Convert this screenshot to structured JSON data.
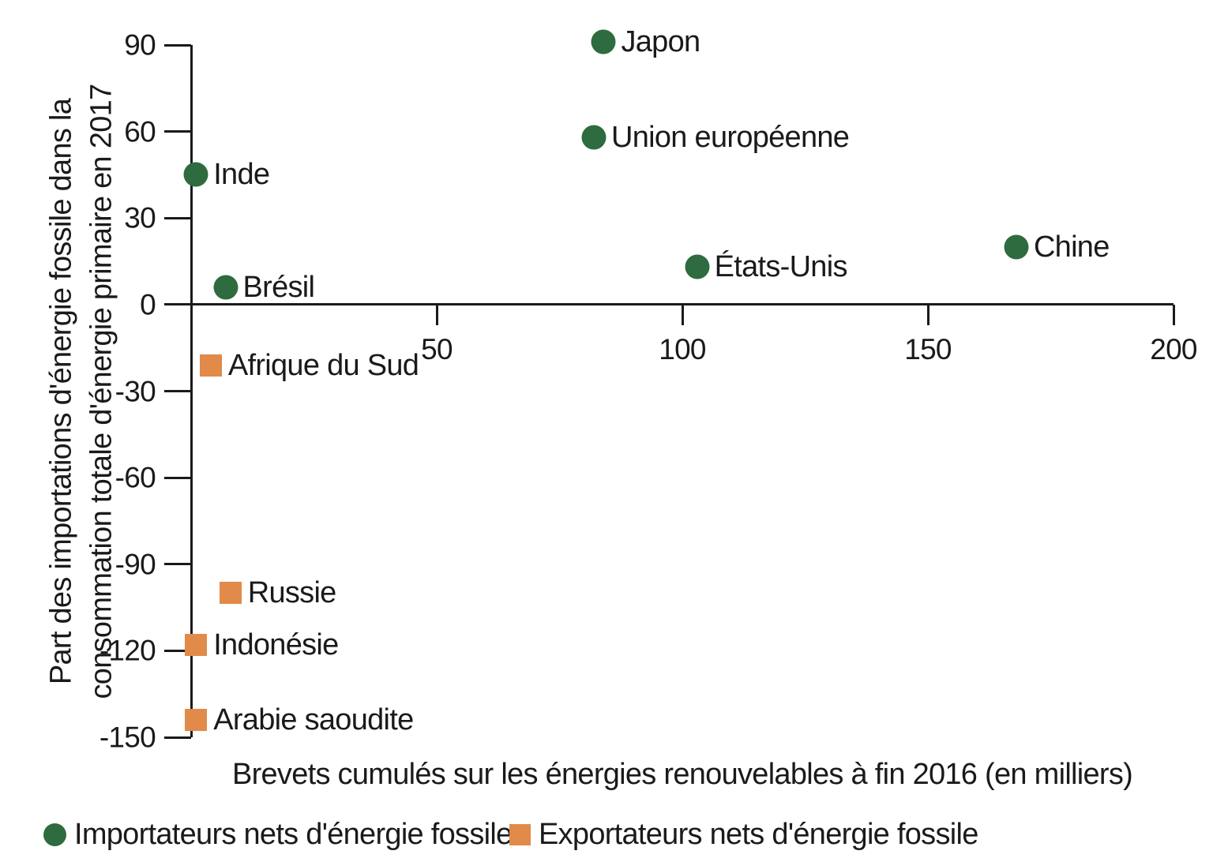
{
  "figure": {
    "background": "#ffffff",
    "text_color": "#1a1a1a",
    "axis_color": "#1a1a1a"
  },
  "chart_data": {
    "type": "scatter",
    "title": "",
    "xlabel": "Brevets cumulés sur les énergies renouvelables à fin 2016 (en milliers)",
    "ylabel": "Part des importations d'énergie fossile dans la consommation totale d'énergie primaire en 2017",
    "ylabel_lines": [
      "Part des importations d'énergie fossile dans la",
      "consommation totale d'énergie primaire en 2017"
    ],
    "xlim": [
      0,
      200
    ],
    "ylim": [
      -150,
      90
    ],
    "x_ticks": [
      50,
      100,
      150,
      200
    ],
    "y_ticks": [
      90,
      60,
      30,
      0,
      -30,
      -60,
      -90,
      -120,
      -150
    ],
    "grid": false,
    "legend_position": "bottom-left",
    "series": [
      {
        "name": "Importateurs nets d'énergie fossile",
        "marker": "circle",
        "color": "#2E6B3F",
        "points": [
          {
            "label": "Japon",
            "x": 84,
            "y": 91
          },
          {
            "label": "Union européenne",
            "x": 82,
            "y": 58
          },
          {
            "label": "Inde",
            "x": 1,
            "y": 45
          },
          {
            "label": "Chine",
            "x": 168,
            "y": 20
          },
          {
            "label": "États-Unis",
            "x": 103,
            "y": 13
          },
          {
            "label": "Brésil",
            "x": 7,
            "y": 6
          }
        ]
      },
      {
        "name": "Exportateurs nets d'énergie fossile",
        "marker": "square",
        "color": "#E18A4A",
        "points": [
          {
            "label": "Afrique du Sud",
            "x": 4,
            "y": -21
          },
          {
            "label": "Russie",
            "x": 8,
            "y": -100
          },
          {
            "label": "Indonésie",
            "x": 1,
            "y": -118
          },
          {
            "label": "Arabie saoudite",
            "x": 1,
            "y": -144
          }
        ]
      }
    ]
  }
}
